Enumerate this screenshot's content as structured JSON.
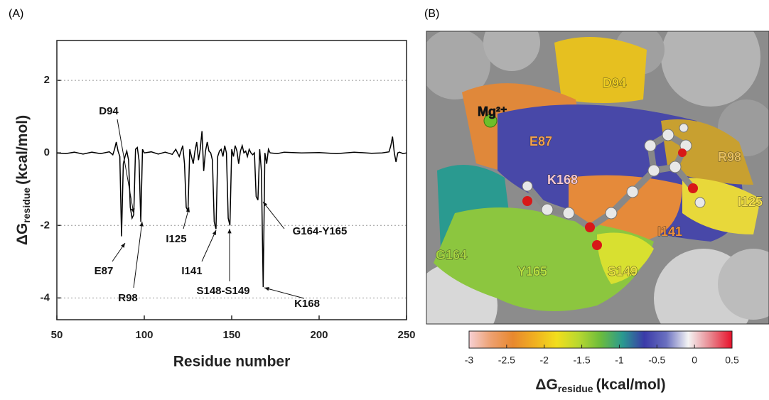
{
  "panel_labels": [
    "(A)",
    "(B)"
  ],
  "chart_data": [
    {
      "type": "line",
      "xlabel": "Residue number",
      "ylabel": {
        "symbol": "ΔG",
        "subscript": "residue",
        "unit": "(kcal/mol)"
      },
      "x": [
        50,
        55,
        60,
        65,
        70,
        75,
        80,
        82,
        83,
        84,
        85,
        86,
        87,
        88,
        89,
        90,
        91,
        92,
        93,
        94,
        95,
        96,
        97,
        98,
        99,
        100,
        104,
        108,
        112,
        116,
        118,
        120,
        121,
        122,
        123,
        124,
        125,
        126,
        127,
        128,
        129,
        130,
        131,
        132,
        133,
        134,
        135,
        136,
        137,
        138,
        139,
        140,
        141,
        142,
        143,
        144,
        145,
        146,
        147,
        148,
        149,
        150,
        151,
        152,
        153,
        154,
        155,
        156,
        157,
        158,
        159,
        160,
        161,
        162,
        163,
        164,
        165,
        166,
        167,
        168,
        169,
        170,
        171,
        172,
        176,
        180,
        190,
        200,
        210,
        220,
        230,
        236,
        240,
        241,
        242,
        243,
        244,
        245,
        246,
        248,
        250
      ],
      "values": [
        0,
        -0.02,
        0.02,
        -0.03,
        0.02,
        -0.02,
        0.03,
        -0.05,
        0.1,
        0.3,
        0.05,
        -0.1,
        -2.3,
        -0.3,
        -0.1,
        0.05,
        -0.2,
        -1.5,
        -1.8,
        -1.7,
        0.1,
        0.15,
        -0.2,
        -1.9,
        0.1,
        0,
        0.03,
        -0.03,
        0.02,
        -0.04,
        0.1,
        -0.1,
        0.05,
        0.2,
        -0.3,
        -1.5,
        -1.6,
        0.1,
        -0.1,
        -0.3,
        0.05,
        0.3,
        -0.2,
        0.1,
        0.6,
        -0.5,
        0.05,
        0.3,
        0.05,
        0,
        -0.2,
        -1.9,
        -2.1,
        -0.1,
        0.05,
        0.1,
        -0.1,
        0.2,
        0,
        -1.8,
        -2.0,
        0.1,
        -0.1,
        0.2,
        0.05,
        -0.3,
        0.05,
        0.2,
        0,
        0.05,
        -0.1,
        0.1,
        0,
        -0.05,
        0,
        -1.2,
        -1.3,
        0.1,
        -0.5,
        -3.7,
        0,
        -0.3,
        0.1,
        0,
        -0.02,
        0.02,
        0,
        0.01,
        -0.02,
        0.02,
        -0.01,
        0,
        0.03,
        0.2,
        0.45,
        0,
        -0.25,
        0,
        0.02,
        -0.02,
        0
      ],
      "color": "#000000",
      "xlim": [
        50,
        250
      ],
      "xticks": [
        50,
        100,
        150,
        200,
        250
      ],
      "ylim": [
        -4.6,
        3.1
      ],
      "yticks": [
        -4,
        -2,
        0,
        2
      ],
      "grid": true,
      "annotations": [
        "D94",
        "E87",
        "R98",
        "I125",
        "I141",
        "S148-S149",
        "G164-Y165",
        "K168"
      ]
    },
    {
      "type": "colorbar",
      "colormap": [
        "#f6d0d4",
        "#eda070",
        "#e8882e",
        "#f0b020",
        "#f2de1c",
        "#b8d830",
        "#6cbc3c",
        "#2a9a90",
        "#3a3aa8",
        "#6a70c0",
        "#f4f4f4",
        "#e88890",
        "#e8102a"
      ],
      "xlim": [
        -3,
        0.5
      ],
      "xticks": [
        -3,
        -2.5,
        -2,
        -1.5,
        -1,
        -0.5,
        0,
        0.5
      ],
      "xlabel": {
        "symbol": "ΔG",
        "subscript": "residue",
        "unit": "(kcal/mol)"
      },
      "structure_labels": [
        "D94",
        "Mg²⁺",
        "E87",
        "R98",
        "K168",
        "I125",
        "I141",
        "G164",
        "Y165",
        "S149"
      ]
    }
  ]
}
